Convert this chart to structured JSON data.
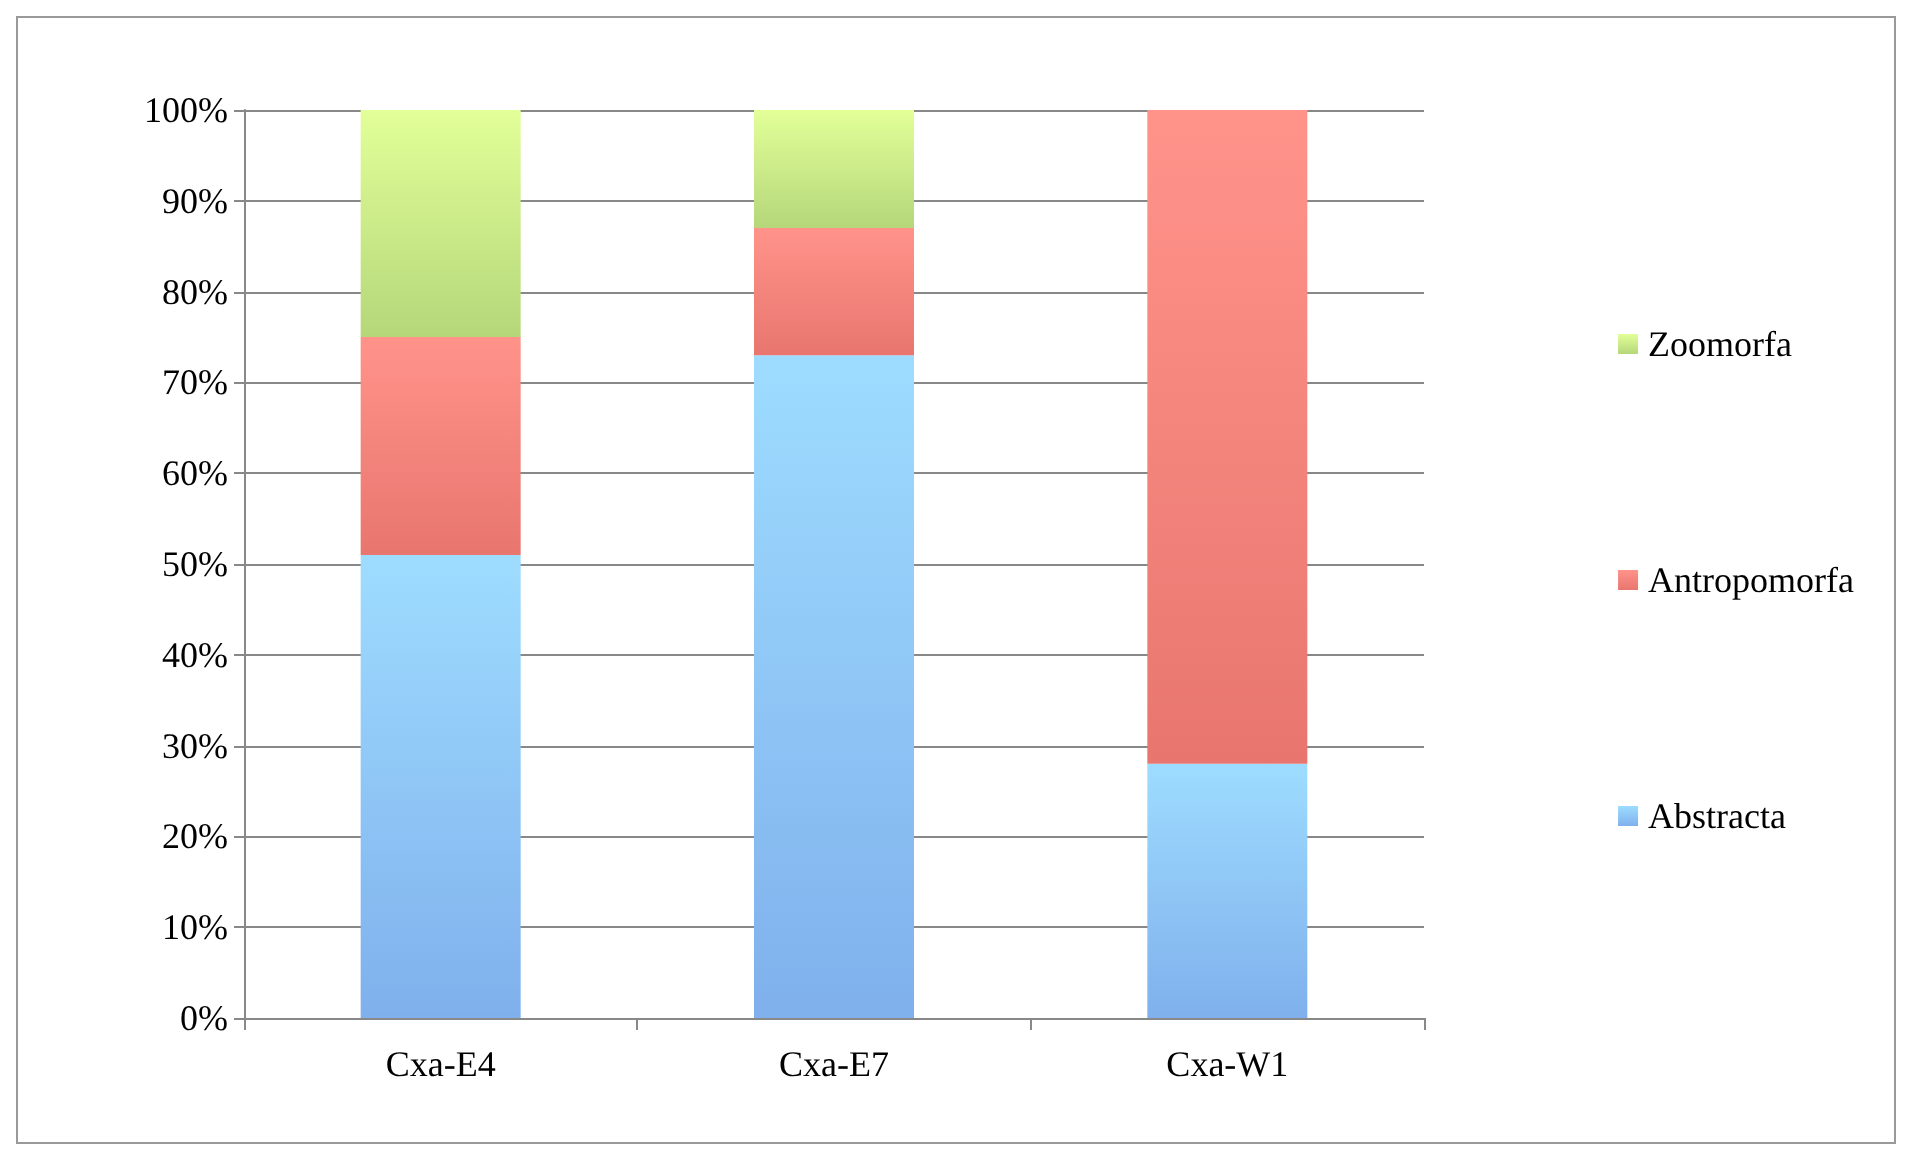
{
  "chart_data": {
    "type": "bar",
    "stacked": true,
    "categories": [
      "Cxa-E4",
      "Cxa-E7",
      "Cxa-W1"
    ],
    "series": [
      {
        "name": "Abstracta",
        "color": "#7fb0ec",
        "values": [
          51,
          73,
          28
        ]
      },
      {
        "name": "Antropomorfa",
        "color": "#e8766f",
        "values": [
          24,
          14,
          72
        ]
      },
      {
        "name": "Zoomorfa",
        "color": "#b5d77a",
        "values": [
          25,
          13,
          0
        ]
      }
    ],
    "ylim": [
      0,
      100
    ],
    "yticks": [
      {
        "value": 0,
        "label": "0%"
      },
      {
        "value": 10,
        "label": "10%"
      },
      {
        "value": 20,
        "label": "20%"
      },
      {
        "value": 30,
        "label": "30%"
      },
      {
        "value": 40,
        "label": "40%"
      },
      {
        "value": 50,
        "label": "50%"
      },
      {
        "value": 60,
        "label": "60%"
      },
      {
        "value": 70,
        "label": "70%"
      },
      {
        "value": 80,
        "label": "80%"
      },
      {
        "value": 90,
        "label": "90%"
      },
      {
        "value": 100,
        "label": "100%"
      }
    ],
    "grid": "y",
    "legend": "right"
  }
}
